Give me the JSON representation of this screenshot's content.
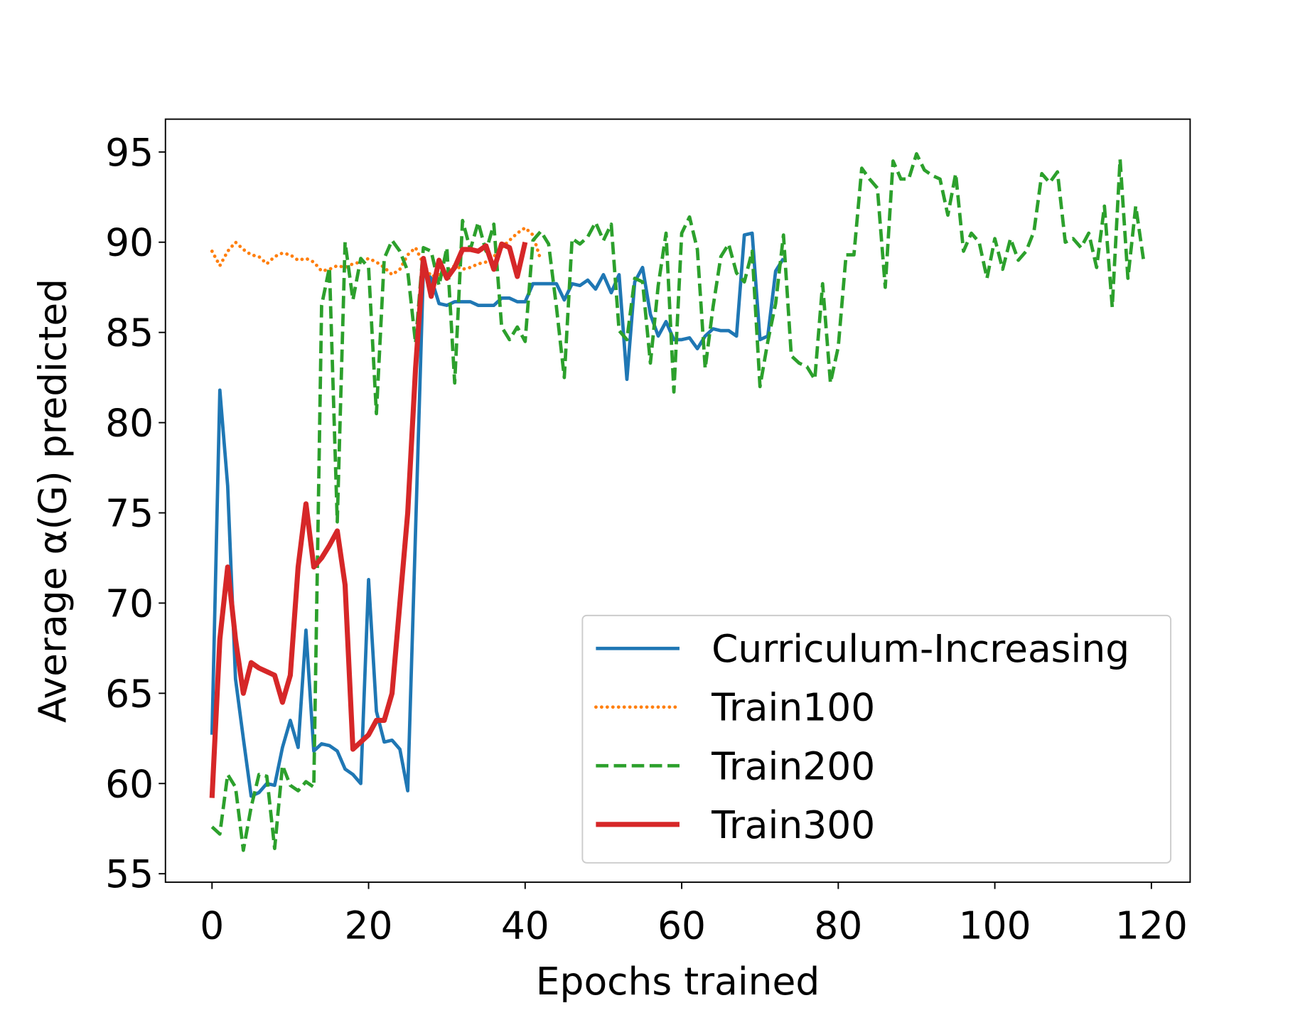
{
  "chart_data": {
    "type": "line",
    "xlabel": "Epochs trained",
    "ylabel": "Average α(G) predicted",
    "xlim": [
      -5.95,
      124.95
    ],
    "ylim": [
      54.53,
      96.82
    ],
    "xticks": [
      0,
      20,
      40,
      60,
      80,
      100,
      120
    ],
    "yticks": [
      55,
      60,
      65,
      70,
      75,
      80,
      85,
      90,
      95
    ],
    "grid": false,
    "legend": "lower right",
    "series": [
      {
        "name": "Curriculum-Increasing",
        "color": "#1f77b4",
        "linestyle": "solid",
        "linewidth": 2,
        "x": [
          0,
          1,
          2,
          3,
          4,
          5,
          6,
          7,
          8,
          9,
          10,
          11,
          12,
          13,
          14,
          15,
          16,
          17,
          18,
          19,
          20,
          21,
          22,
          23,
          24,
          25,
          26,
          27,
          28,
          29,
          30,
          31,
          32,
          33,
          34,
          35,
          36,
          37,
          38,
          39,
          40,
          41,
          42,
          43,
          44,
          45,
          46,
          47,
          48,
          49,
          50,
          51,
          52,
          53,
          54,
          55,
          56,
          57,
          58,
          59,
          60,
          61,
          62,
          63,
          64,
          65,
          66,
          67,
          68,
          69,
          70,
          71,
          72,
          73
        ],
        "values": [
          62.7,
          81.8,
          76.5,
          65.8,
          62.5,
          59.3,
          59.5,
          60,
          59.9,
          62,
          63.5,
          62,
          68.5,
          61.8,
          62.2,
          62.1,
          61.8,
          60.8,
          60.5,
          60,
          71.3,
          64,
          62.3,
          62.4,
          61.9,
          59.6,
          74,
          88.5,
          88,
          86.6,
          86.5,
          86.7,
          86.7,
          86.7,
          86.5,
          86.5,
          86.5,
          86.9,
          86.9,
          86.7,
          86.7,
          87.7,
          87.7,
          87.7,
          87.7,
          86.8,
          87.7,
          87.6,
          87.9,
          87.4,
          88.2,
          87.2,
          88.2,
          82.4,
          87.8,
          88.6,
          86,
          84.8,
          85.6,
          84.6,
          84.6,
          84.7,
          84.1,
          84.8,
          85.2,
          85.1,
          85.1,
          84.8,
          90.4,
          90.5,
          84.6,
          84.8,
          88.4,
          89.1
        ]
      },
      {
        "name": "Train100",
        "color": "#ff7f0e",
        "linestyle": "dotted",
        "linewidth": 2,
        "x": [
          0,
          1,
          2,
          3,
          4,
          5,
          6,
          7,
          8,
          9,
          10,
          11,
          12,
          13,
          14,
          15,
          16,
          17,
          18,
          19,
          20,
          21,
          22,
          23,
          24,
          25,
          26,
          27,
          28,
          29,
          30,
          31,
          32,
          33,
          34,
          35,
          36,
          37,
          38,
          39,
          40,
          41,
          42
        ],
        "values": [
          89.5,
          88.7,
          89.5,
          90,
          89.6,
          89.3,
          89.2,
          88.8,
          89.2,
          89.4,
          89.3,
          89,
          89.1,
          88.9,
          88.4,
          88.5,
          88.7,
          88.6,
          88.8,
          88.9,
          89.1,
          88.9,
          88.6,
          88.2,
          88.5,
          89.3,
          89.7,
          88.8,
          88.1,
          88.2,
          88.4,
          88.7,
          88.5,
          88.6,
          88.8,
          88.9,
          89.2,
          89.7,
          90.1,
          90.5,
          90.8,
          90.4,
          89
        ]
      },
      {
        "name": "Train200",
        "color": "#2ca02c",
        "linestyle": "dashed",
        "linewidth": 2,
        "x": [
          0,
          1,
          2,
          3,
          4,
          5,
          6,
          7,
          8,
          9,
          10,
          11,
          12,
          13,
          14,
          15,
          16,
          17,
          18,
          19,
          20,
          21,
          22,
          23,
          24,
          25,
          26,
          27,
          28,
          29,
          30,
          31,
          32,
          33,
          34,
          35,
          36,
          37,
          38,
          39,
          40,
          41,
          42,
          43,
          44,
          45,
          46,
          47,
          48,
          49,
          50,
          51,
          52,
          53,
          54,
          55,
          56,
          57,
          58,
          59,
          60,
          61,
          62,
          63,
          64,
          65,
          66,
          67,
          68,
          69,
          70,
          71,
          72,
          73,
          74,
          75,
          76,
          77,
          78,
          79,
          80,
          81,
          82,
          83,
          84,
          85,
          86,
          87,
          88,
          89,
          90,
          91,
          92,
          93,
          94,
          95,
          96,
          97,
          98,
          99,
          100,
          101,
          102,
          103,
          104,
          105,
          106,
          107,
          108,
          109,
          110,
          111,
          112,
          113,
          114,
          115,
          116,
          117,
          118,
          119
        ],
        "values": [
          57.6,
          57.2,
          60.5,
          59.8,
          56.3,
          58.7,
          60.5,
          60.4,
          56.4,
          61,
          59.9,
          59.6,
          60.1,
          59.8,
          86.5,
          88.6,
          74.5,
          90,
          86.8,
          89.1,
          88.6,
          80.5,
          89.1,
          90.1,
          89.5,
          88.4,
          84.4,
          89.7,
          89.5,
          87.6,
          89.7,
          82.2,
          91.2,
          89.6,
          91.1,
          89.5,
          91,
          85.3,
          84.6,
          85.3,
          84.5,
          90.1,
          90.6,
          89.9,
          86.4,
          82.5,
          90.2,
          89.9,
          90.3,
          91.1,
          90.1,
          91,
          85.1,
          84.6,
          88,
          87.8,
          83.3,
          87.6,
          90.5,
          81.7,
          90.5,
          91.4,
          89.6,
          83,
          86.4,
          89.2,
          89.9,
          88.3,
          87.8,
          89.5,
          82,
          84.5,
          86.6,
          90.4,
          83.7,
          83.3,
          83.1,
          82.4,
          87.7,
          82.2,
          84.2,
          89.3,
          89.3,
          94.1,
          93.5,
          93,
          87.5,
          94.5,
          93.5,
          93.5,
          94.9,
          94,
          93.7,
          93.5,
          91.5,
          93.8,
          89.5,
          90.5,
          90,
          88,
          90.2,
          88.5,
          90.2,
          89,
          89.5,
          90.6,
          93.8,
          93.3,
          93.9,
          90,
          90.2,
          89.7,
          90.5,
          88.6,
          92,
          86.4,
          94.6,
          88,
          92,
          89
        ]
      },
      {
        "name": "Train300",
        "color": "#d62728",
        "linestyle": "solid",
        "linewidth": 3,
        "x": [
          0,
          1,
          2,
          3,
          4,
          5,
          6,
          7,
          8,
          9,
          10,
          11,
          12,
          13,
          14,
          15,
          16,
          17,
          18,
          19,
          20,
          21,
          22,
          23,
          24,
          25,
          26,
          27,
          28,
          29,
          30,
          31,
          32,
          33,
          34,
          35,
          36,
          37,
          38,
          39,
          40
        ],
        "values": [
          59.2,
          68,
          72,
          68,
          65,
          66.7,
          66.4,
          66.2,
          66,
          64.5,
          66,
          72,
          75.5,
          72,
          72.5,
          73.2,
          74,
          71,
          61.9,
          62.3,
          62.7,
          63.5,
          63.5,
          65,
          70,
          75,
          83,
          89.1,
          87,
          89,
          88,
          88.6,
          89.6,
          89.6,
          89.5,
          89.8,
          88.5,
          89.9,
          89.7,
          88.1,
          90
        ]
      }
    ]
  }
}
